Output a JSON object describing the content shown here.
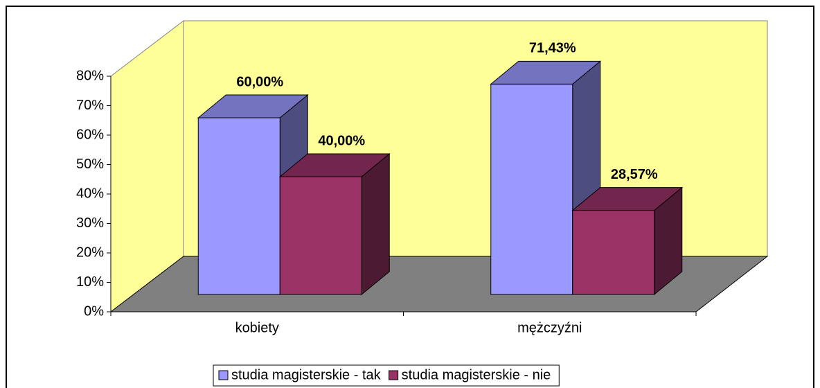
{
  "chart_data": {
    "type": "bar3d",
    "categories": [
      "kobiety",
      "mężczyźni"
    ],
    "series": [
      {
        "name": "studia magisterskie - tak",
        "color": "#9999ff",
        "values": [
          60,
          71.43
        ],
        "value_labels": [
          "60,00%",
          "71,43%"
        ]
      },
      {
        "name": "studia magisterskie - nie",
        "color": "#993366",
        "values": [
          40,
          28.57
        ],
        "value_labels": [
          "40,00%",
          "28,57%"
        ]
      }
    ],
    "ylim": [
      0,
      80
    ],
    "yticks": [
      {
        "value": 0,
        "label": "0%"
      },
      {
        "value": 10,
        "label": "10%"
      },
      {
        "value": 20,
        "label": "20%"
      },
      {
        "value": 30,
        "label": "30%"
      },
      {
        "value": 40,
        "label": "40%"
      },
      {
        "value": 50,
        "label": "50%"
      },
      {
        "value": 60,
        "label": "60%"
      },
      {
        "value": 70,
        "label": "70%"
      },
      {
        "value": 80,
        "label": "80%"
      }
    ],
    "legend": "bottom"
  }
}
